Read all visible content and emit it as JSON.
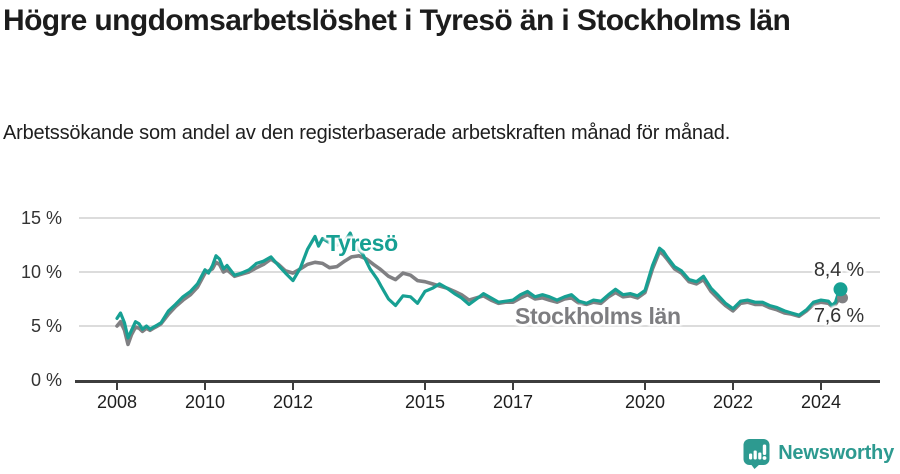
{
  "header": {
    "title": "Högre ungdomsarbetslöshet i Tyresö än i Stockholms län",
    "subtitle": "Arbetssökande som andel av den registerbaserade arbetskraften månad för månad."
  },
  "chart_data": {
    "type": "line",
    "title": "Högre ungdomsarbetslöshet i Tyresö än i Stockholms län",
    "xlabel": "",
    "ylabel": "Arbetssökande som andel av den registerbaserade arbetskraften",
    "x_unit": "year (monthly values)",
    "ylim": [
      0,
      15
    ],
    "xlim": [
      2007.5,
      2025.3
    ],
    "grid": "horizontal",
    "legend_position": "inline-labels",
    "y_axis": {
      "ticks": [
        {
          "value": 15,
          "label": "15 %"
        },
        {
          "value": 10,
          "label": "10 %"
        },
        {
          "value": 5,
          "label": "5 %"
        },
        {
          "value": 0,
          "label": "0 %"
        }
      ]
    },
    "x_axis": {
      "ticks": [
        {
          "value": 2008,
          "label": "2008"
        },
        {
          "value": 2010,
          "label": "2010"
        },
        {
          "value": 2012,
          "label": "2012"
        },
        {
          "value": 2015,
          "label": "2015"
        },
        {
          "value": 2017,
          "label": "2017"
        },
        {
          "value": 2020,
          "label": "2020"
        },
        {
          "value": 2022,
          "label": "2022"
        },
        {
          "value": 2024,
          "label": "2024"
        }
      ]
    },
    "series": [
      {
        "name": "Stockholms län",
        "color": "#808083",
        "end_label": "7,6 %",
        "end_value": 7.6,
        "values": [
          [
            2008.0,
            5.0
          ],
          [
            2008.08,
            5.4
          ],
          [
            2008.17,
            4.6
          ],
          [
            2008.25,
            3.3
          ],
          [
            2008.33,
            4.2
          ],
          [
            2008.42,
            4.9
          ],
          [
            2008.5,
            4.8
          ],
          [
            2008.58,
            4.5
          ],
          [
            2008.67,
            4.8
          ],
          [
            2008.75,
            4.6
          ],
          [
            2008.83,
            4.8
          ],
          [
            2008.92,
            5.0
          ],
          [
            2009.0,
            5.2
          ],
          [
            2009.17,
            6.1
          ],
          [
            2009.33,
            6.8
          ],
          [
            2009.5,
            7.4
          ],
          [
            2009.67,
            7.9
          ],
          [
            2009.83,
            8.6
          ],
          [
            2010.0,
            9.9
          ],
          [
            2010.17,
            10.3
          ],
          [
            2010.25,
            10.9
          ],
          [
            2010.33,
            10.7
          ],
          [
            2010.42,
            10.0
          ],
          [
            2010.5,
            10.2
          ],
          [
            2010.67,
            9.6
          ],
          [
            2010.83,
            9.8
          ],
          [
            2011.0,
            10.0
          ],
          [
            2011.17,
            10.4
          ],
          [
            2011.33,
            10.7
          ],
          [
            2011.5,
            11.2
          ],
          [
            2011.67,
            10.7
          ],
          [
            2011.83,
            10.1
          ],
          [
            2012.0,
            9.9
          ],
          [
            2012.17,
            10.3
          ],
          [
            2012.33,
            10.7
          ],
          [
            2012.5,
            10.9
          ],
          [
            2012.67,
            10.8
          ],
          [
            2012.83,
            10.4
          ],
          [
            2013.0,
            10.5
          ],
          [
            2013.17,
            11.0
          ],
          [
            2013.33,
            11.4
          ],
          [
            2013.5,
            11.5
          ],
          [
            2013.67,
            11.2
          ],
          [
            2013.83,
            10.7
          ],
          [
            2014.0,
            10.2
          ],
          [
            2014.17,
            9.6
          ],
          [
            2014.33,
            9.3
          ],
          [
            2014.5,
            9.9
          ],
          [
            2014.67,
            9.7
          ],
          [
            2014.83,
            9.2
          ],
          [
            2015.0,
            9.1
          ],
          [
            2015.17,
            8.9
          ],
          [
            2015.33,
            8.7
          ],
          [
            2015.5,
            8.5
          ],
          [
            2015.67,
            8.2
          ],
          [
            2015.83,
            7.9
          ],
          [
            2016.0,
            7.4
          ],
          [
            2016.17,
            7.6
          ],
          [
            2016.33,
            7.8
          ],
          [
            2016.5,
            7.4
          ],
          [
            2016.67,
            7.1
          ],
          [
            2016.83,
            7.2
          ],
          [
            2017.0,
            7.2
          ],
          [
            2017.17,
            7.6
          ],
          [
            2017.33,
            7.9
          ],
          [
            2017.5,
            7.5
          ],
          [
            2017.67,
            7.6
          ],
          [
            2017.83,
            7.4
          ],
          [
            2018.0,
            7.2
          ],
          [
            2018.17,
            7.5
          ],
          [
            2018.33,
            7.6
          ],
          [
            2018.5,
            7.1
          ],
          [
            2018.67,
            7.0
          ],
          [
            2018.83,
            7.2
          ],
          [
            2019.0,
            7.1
          ],
          [
            2019.17,
            7.7
          ],
          [
            2019.33,
            8.1
          ],
          [
            2019.5,
            7.7
          ],
          [
            2019.67,
            7.8
          ],
          [
            2019.83,
            7.6
          ],
          [
            2020.0,
            8.1
          ],
          [
            2020.17,
            10.3
          ],
          [
            2020.33,
            11.9
          ],
          [
            2020.42,
            11.6
          ],
          [
            2020.5,
            11.2
          ],
          [
            2020.67,
            10.3
          ],
          [
            2020.83,
            9.9
          ],
          [
            2021.0,
            9.1
          ],
          [
            2021.17,
            8.9
          ],
          [
            2021.33,
            9.3
          ],
          [
            2021.5,
            8.2
          ],
          [
            2021.67,
            7.5
          ],
          [
            2021.83,
            6.9
          ],
          [
            2022.0,
            6.4
          ],
          [
            2022.17,
            7.1
          ],
          [
            2022.33,
            7.2
          ],
          [
            2022.5,
            7.0
          ],
          [
            2022.67,
            7.0
          ],
          [
            2022.83,
            6.7
          ],
          [
            2023.0,
            6.5
          ],
          [
            2023.17,
            6.2
          ],
          [
            2023.33,
            6.1
          ],
          [
            2023.5,
            5.9
          ],
          [
            2023.67,
            6.4
          ],
          [
            2023.83,
            7.0
          ],
          [
            2024.0,
            7.2
          ],
          [
            2024.17,
            7.1
          ],
          [
            2024.25,
            6.8
          ],
          [
            2024.33,
            7.0
          ],
          [
            2024.42,
            7.6
          ]
        ]
      },
      {
        "name": "Tyresö",
        "color": "#17a093",
        "end_label": "8,4 %",
        "end_value": 8.4,
        "values": [
          [
            2008.0,
            5.7
          ],
          [
            2008.08,
            6.2
          ],
          [
            2008.17,
            5.3
          ],
          [
            2008.25,
            3.9
          ],
          [
            2008.33,
            4.6
          ],
          [
            2008.42,
            5.4
          ],
          [
            2008.5,
            5.2
          ],
          [
            2008.58,
            4.7
          ],
          [
            2008.67,
            5.0
          ],
          [
            2008.75,
            4.7
          ],
          [
            2008.83,
            4.9
          ],
          [
            2008.92,
            5.1
          ],
          [
            2009.0,
            5.3
          ],
          [
            2009.17,
            6.4
          ],
          [
            2009.33,
            7.0
          ],
          [
            2009.5,
            7.7
          ],
          [
            2009.67,
            8.2
          ],
          [
            2009.83,
            8.9
          ],
          [
            2010.0,
            10.2
          ],
          [
            2010.08,
            9.9
          ],
          [
            2010.17,
            10.6
          ],
          [
            2010.25,
            11.5
          ],
          [
            2010.33,
            11.2
          ],
          [
            2010.42,
            10.3
          ],
          [
            2010.5,
            10.6
          ],
          [
            2010.67,
            9.7
          ],
          [
            2010.83,
            9.9
          ],
          [
            2011.0,
            10.2
          ],
          [
            2011.17,
            10.8
          ],
          [
            2011.33,
            11.0
          ],
          [
            2011.5,
            11.4
          ],
          [
            2011.67,
            10.6
          ],
          [
            2011.83,
            9.9
          ],
          [
            2012.0,
            9.2
          ],
          [
            2012.17,
            10.4
          ],
          [
            2012.33,
            12.1
          ],
          [
            2012.5,
            13.3
          ],
          [
            2012.58,
            12.4
          ],
          [
            2012.67,
            13.1
          ],
          [
            2012.83,
            12.7
          ],
          [
            2013.0,
            12.5
          ],
          [
            2013.17,
            12.8
          ],
          [
            2013.3,
            13.6
          ],
          [
            2013.42,
            12.4
          ],
          [
            2013.58,
            11.7
          ],
          [
            2013.75,
            10.3
          ],
          [
            2013.92,
            9.3
          ],
          [
            2014.0,
            8.7
          ],
          [
            2014.17,
            7.5
          ],
          [
            2014.33,
            6.9
          ],
          [
            2014.5,
            7.8
          ],
          [
            2014.67,
            7.7
          ],
          [
            2014.83,
            7.1
          ],
          [
            2015.0,
            8.2
          ],
          [
            2015.17,
            8.5
          ],
          [
            2015.33,
            8.9
          ],
          [
            2015.5,
            8.5
          ],
          [
            2015.67,
            8.0
          ],
          [
            2015.83,
            7.6
          ],
          [
            2016.0,
            7.0
          ],
          [
            2016.17,
            7.5
          ],
          [
            2016.33,
            8.0
          ],
          [
            2016.5,
            7.6
          ],
          [
            2016.67,
            7.2
          ],
          [
            2016.83,
            7.3
          ],
          [
            2017.0,
            7.4
          ],
          [
            2017.17,
            7.9
          ],
          [
            2017.33,
            8.2
          ],
          [
            2017.5,
            7.7
          ],
          [
            2017.67,
            7.9
          ],
          [
            2017.83,
            7.7
          ],
          [
            2018.0,
            7.4
          ],
          [
            2018.17,
            7.7
          ],
          [
            2018.33,
            7.9
          ],
          [
            2018.5,
            7.3
          ],
          [
            2018.67,
            7.1
          ],
          [
            2018.83,
            7.4
          ],
          [
            2019.0,
            7.3
          ],
          [
            2019.17,
            7.9
          ],
          [
            2019.33,
            8.4
          ],
          [
            2019.5,
            7.9
          ],
          [
            2019.67,
            8.0
          ],
          [
            2019.83,
            7.8
          ],
          [
            2020.0,
            8.3
          ],
          [
            2020.17,
            10.6
          ],
          [
            2020.33,
            12.2
          ],
          [
            2020.42,
            11.9
          ],
          [
            2020.5,
            11.4
          ],
          [
            2020.67,
            10.5
          ],
          [
            2020.83,
            10.1
          ],
          [
            2021.0,
            9.3
          ],
          [
            2021.17,
            9.1
          ],
          [
            2021.33,
            9.6
          ],
          [
            2021.5,
            8.5
          ],
          [
            2021.67,
            7.8
          ],
          [
            2021.83,
            7.1
          ],
          [
            2022.0,
            6.6
          ],
          [
            2022.17,
            7.3
          ],
          [
            2022.33,
            7.4
          ],
          [
            2022.5,
            7.2
          ],
          [
            2022.67,
            7.2
          ],
          [
            2022.83,
            6.9
          ],
          [
            2023.0,
            6.7
          ],
          [
            2023.17,
            6.4
          ],
          [
            2023.33,
            6.2
          ],
          [
            2023.5,
            6.0
          ],
          [
            2023.67,
            6.5
          ],
          [
            2023.83,
            7.2
          ],
          [
            2024.0,
            7.4
          ],
          [
            2024.17,
            7.3
          ],
          [
            2024.25,
            6.9
          ],
          [
            2024.33,
            7.2
          ],
          [
            2024.42,
            8.4
          ]
        ]
      }
    ],
    "annotations": [
      {
        "text": "8,4 %",
        "series": "Tyresö"
      },
      {
        "text": "7,6 %",
        "series": "Stockholms län"
      }
    ]
  },
  "labels": {
    "tyreso": "Tyresö",
    "stockholm": "Stockholms län"
  },
  "footer": {
    "brand": "Newsworthy",
    "logo_icon": "bar-chart-speech-bubble",
    "brand_color": "#2d9a90"
  }
}
